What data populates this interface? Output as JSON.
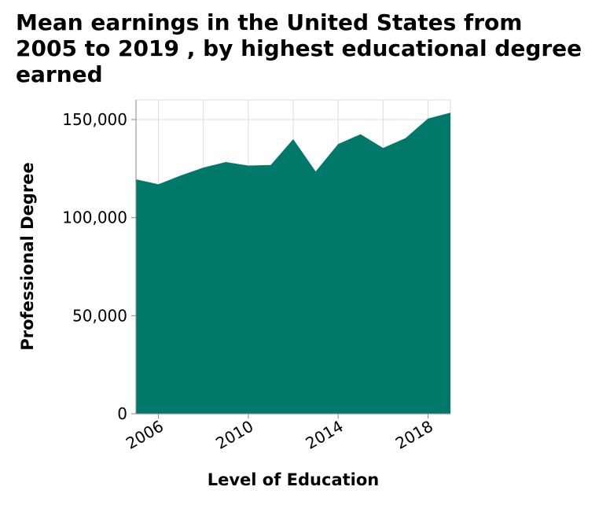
{
  "chart_data": {
    "type": "area",
    "title": "Mean earnings in the United States from 2005 to 2019 , by highest educational degree earned",
    "xlabel": "Level of Education",
    "ylabel": "Professional Degree",
    "x": [
      2005,
      2006,
      2007,
      2008,
      2009,
      2010,
      2011,
      2012,
      2013,
      2014,
      2015,
      2016,
      2017,
      2018,
      2019
    ],
    "series": [
      {
        "values": [
          119500,
          117000,
          121500,
          125500,
          128300,
          126500,
          126800,
          140000,
          123500,
          137500,
          142500,
          135500,
          140500,
          150500,
          153500
        ],
        "color": "#00796b"
      }
    ],
    "xlim": [
      2005,
      2019
    ],
    "ylim": [
      0,
      160000
    ],
    "x_ticks": [
      2006,
      2010,
      2014,
      2018
    ],
    "x_tick_labels": [
      "2006",
      "2010",
      "2014",
      "2018"
    ],
    "y_ticks": [
      0,
      50000,
      100000,
      150000
    ],
    "y_tick_labels": [
      "0",
      "50,000",
      "100,000",
      "150,000"
    ],
    "grid": true,
    "legend": "none"
  }
}
